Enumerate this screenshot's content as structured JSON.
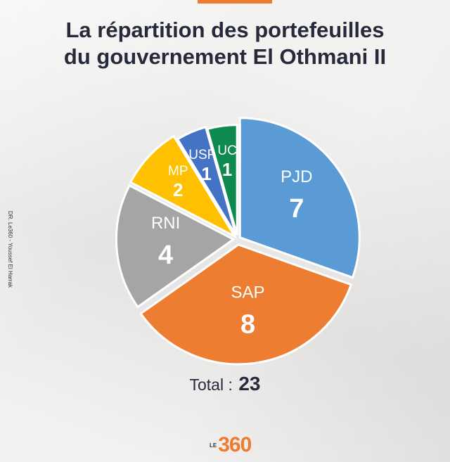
{
  "title_line1": "La répartition des portefeuilles",
  "title_line2": "du gouvernement El Othmani II",
  "credit": "DR. Le360 - Youssef El Harrak",
  "total_label": "Total :",
  "total_value": "23",
  "logo": {
    "prefix": "LE",
    "number": "360"
  },
  "colors": {
    "accent": "#ee7b30",
    "PJD": "#5b9bd5",
    "SAP": "#ed7d31",
    "RNI": "#a5a5a5",
    "MP": "#ffc000",
    "USFP": "#4472c4",
    "UC": "#0e8a4f"
  },
  "chart_data": {
    "type": "pie",
    "title": "La répartition des portefeuilles du gouvernement El Othmani II",
    "categories": [
      "PJD",
      "SAP",
      "RNI",
      "MP",
      "USFP",
      "UC"
    ],
    "values": [
      7,
      8,
      4,
      2,
      1,
      1
    ],
    "total": 23,
    "legend": "none",
    "exploded": true
  }
}
